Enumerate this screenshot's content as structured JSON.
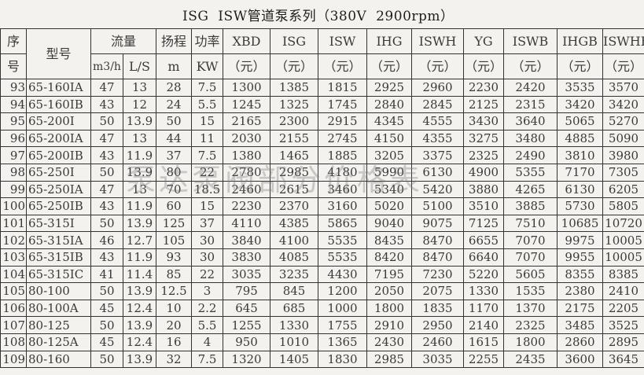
{
  "title": "ISG  ISW管道泵系列（380V  2900rpm）",
  "watermark": "泵达泵阀部分价格表",
  "headers": {
    "index": [
      "序",
      "号"
    ],
    "model": "型号",
    "flow": "流量",
    "flow_m3h": "m3/h",
    "flow_ls": "L/S",
    "head": "扬程",
    "head_unit": "m",
    "power": "功率",
    "power_unit": "KW",
    "price_cols": [
      "XBD",
      "ISG",
      "ISW",
      "IHG",
      "ISWH",
      "YG",
      "ISWB",
      "IHGB",
      "ISWHB"
    ],
    "price_unit": "（元）"
  },
  "rows": [
    [
      "93",
      "65-160IA",
      "47",
      "13",
      "28",
      "7.5",
      "1300",
      "1385",
      "1815",
      "2925",
      "2960",
      "2230",
      "2420",
      "3535",
      "3570"
    ],
    [
      "94",
      "65-160IB",
      "43",
      "12",
      "24",
      "5.5",
      "1245",
      "1325",
      "1745",
      "2840",
      "2845",
      "2125",
      "2315",
      "3420",
      "3420"
    ],
    [
      "95",
      "65-200I",
      "50",
      "13.9",
      "50",
      "15",
      "2165",
      "2300",
      "2915",
      "4345",
      "4555",
      "3430",
      "3640",
      "5065",
      "5270"
    ],
    [
      "96",
      "65-200IA",
      "47",
      "13",
      "44",
      "11",
      "2030",
      "2155",
      "2745",
      "4150",
      "4355",
      "3275",
      "3480",
      "4885",
      "5090"
    ],
    [
      "97",
      "65-200IB",
      "43",
      "11.9",
      "37",
      "7.5",
      "1380",
      "1465",
      "1885",
      "3205",
      "3375",
      "2325",
      "2490",
      "3810",
      "3980"
    ],
    [
      "98",
      "65-250I",
      "50",
      "13.9",
      "80",
      "22",
      "2780",
      "2985",
      "4180",
      "5990",
      "6130",
      "4900",
      "5355",
      "7170",
      "7305"
    ],
    [
      "99",
      "65-250IA",
      "47",
      "13",
      "70",
      "18.5",
      "2460",
      "2615",
      "3460",
      "5340",
      "5420",
      "3880",
      "4265",
      "6130",
      "6205"
    ],
    [
      "100",
      "65-250IB",
      "43",
      "11.9",
      "60",
      "15",
      "2230",
      "2370",
      "3160",
      "5020",
      "5100",
      "3510",
      "3885",
      "5730",
      "5805"
    ],
    [
      "101",
      "65-315I",
      "50",
      "13.9",
      "125",
      "37",
      "4110",
      "4385",
      "5865",
      "9040",
      "9075",
      "7125",
      "7510",
      "10685",
      "10720"
    ],
    [
      "102",
      "65-315IA",
      "46",
      "12.7",
      "105",
      "30",
      "3840",
      "4100",
      "5535",
      "8435",
      "8470",
      "6655",
      "7070",
      "9975",
      "10005"
    ],
    [
      "103",
      "65-315IB",
      "43",
      "11.9",
      "93",
      "30",
      "3830",
      "4085",
      "5535",
      "8420",
      "8470",
      "6640",
      "7070",
      "9955",
      "10005"
    ],
    [
      "104",
      "65-315IC",
      "41",
      "11.4",
      "85",
      "22",
      "3035",
      "3235",
      "4430",
      "7195",
      "7230",
      "5220",
      "5605",
      "8355",
      "8385"
    ],
    [
      "105",
      "80-100",
      "50",
      "13.9",
      "12.5",
      "3",
      "795",
      "845",
      "1200",
      "2050",
      "2075",
      "1330",
      "1535",
      "2380",
      "2410"
    ],
    [
      "106",
      "80-100A",
      "45",
      "12.4",
      "10",
      "2.2",
      "645",
      "685",
      "1000",
      "1800",
      "1835",
      "1170",
      "1370",
      "2175",
      "2205"
    ],
    [
      "107",
      "80-125",
      "50",
      "13.9",
      "20",
      "5.5",
      "1255",
      "1330",
      "1755",
      "2910",
      "2950",
      "2140",
      "2325",
      "3485",
      "3525"
    ],
    [
      "108",
      "80-125A",
      "45",
      "12.4",
      "16",
      "4",
      "950",
      "1010",
      "1365",
      "2430",
      "2460",
      "1615",
      "1800",
      "2860",
      "2895"
    ],
    [
      "109",
      "80-160",
      "50",
      "13.9",
      "32",
      "7.5",
      "1320",
      "1405",
      "1830",
      "2985",
      "3035",
      "2255",
      "2435",
      "3600",
      "3645"
    ]
  ]
}
